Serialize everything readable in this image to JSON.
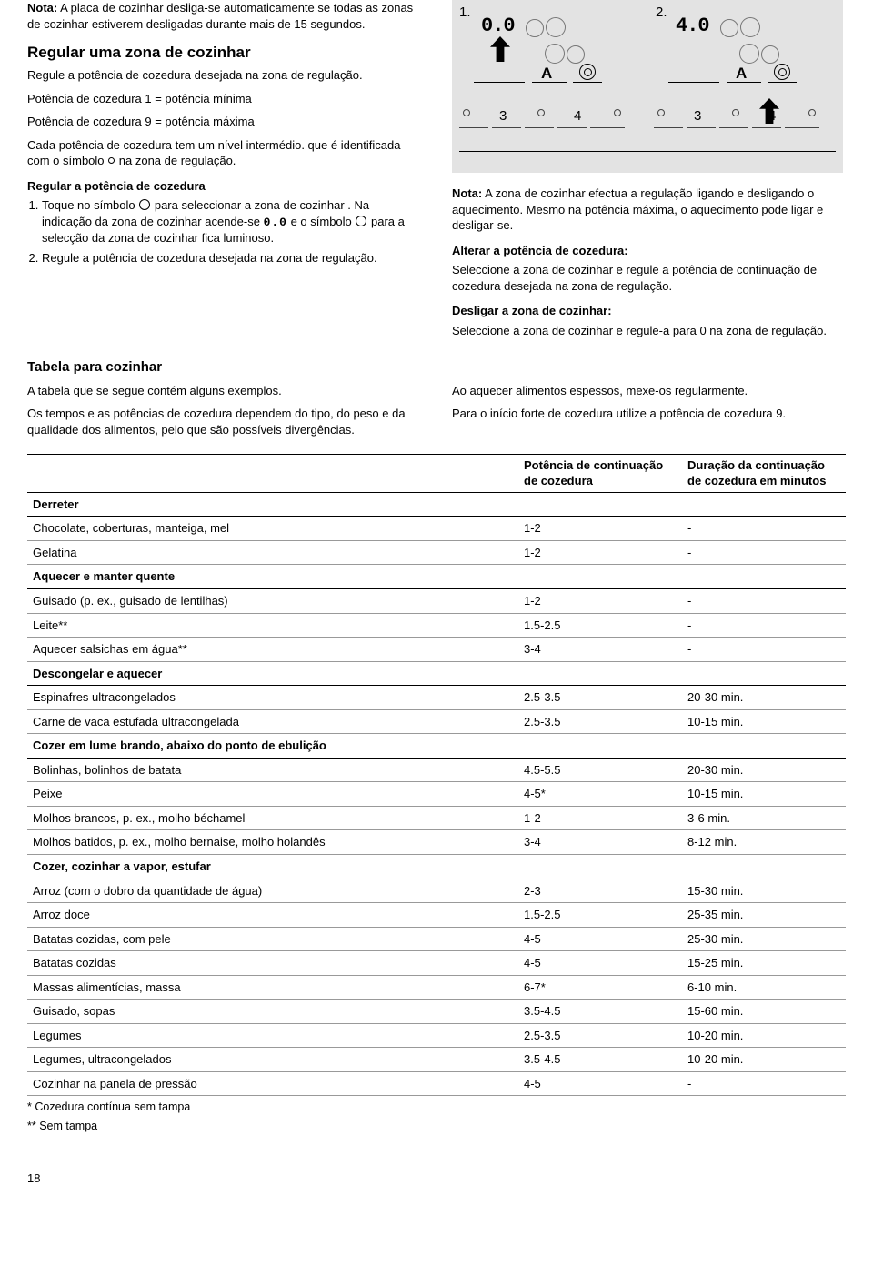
{
  "intro": {
    "note_label": "Nota:",
    "note_text": " A placa de cozinhar desliga-se automaticamente se todas as zonas de cozinhar estiverem desligadas durante mais de 15 segundos.",
    "h_regular": "Regular uma zona de cozinhar",
    "p_regule": "Regule a potência de cozedura desejada na zona de regulação.",
    "p_min": "Potência de cozedura 1 = potência mínima",
    "p_max": "Potência de cozedura 9 = potência máxima",
    "p_inter1": "Cada potência de cozedura tem um nível intermédio. que é identificada com o símbolo ",
    "p_inter2": " na zona de regulação.",
    "sub_pot": "Regular a potência de cozedura",
    "li1a": "Toque no símbolo ",
    "li1b": " para seleccionar a zona de cozinhar . Na indicação da zona de cozinhar acende-se ",
    "li1c": " e o símbolo ",
    "li1d": " para a selecção da zona de cozinhar fica luminoso.",
    "seg00": "0.0",
    "li2": "Regule a potência de cozedura desejada na zona de regulação."
  },
  "illus": {
    "n1": "1.",
    "n2": "2.",
    "disp1": "0.0",
    "disp2": "4.0",
    "a": "A",
    "s3": "3",
    "s4": "4"
  },
  "right": {
    "note_label": "Nota:",
    "note_text": " A zona de cozinhar efectua a regulação ligando e desligando o aquecimento. Mesmo na potência máxima, o aquecimento pode ligar e desligar-se.",
    "h_alt": "Alterar a potência de cozedura:",
    "p_alt": "Seleccione a zona de cozinhar e regule a potência de continuação de cozedura desejada na zona de regulação.",
    "h_off": "Desligar a zona de cozinhar:",
    "p_off": "Seleccione a zona de cozinhar e regule-a para 0 na zona de regulação."
  },
  "tabela": {
    "h": "Tabela para cozinhar",
    "l1": "A tabela que se segue contém alguns exemplos.",
    "l2": "Os tempos e as potências de cozedura dependem do tipo, do peso e da qualidade dos alimentos, pelo que são possíveis divergências.",
    "r1": "Ao aquecer alimentos espessos, mexe-os regularmente.",
    "r2": "Para o início forte de cozedura utilize a potência de cozedura 9.",
    "th1": "Potência de continuação de cozedura",
    "th2": "Duração da continuação de cozedura em minutos",
    "foot1": "* Cozedura contínua sem tampa",
    "foot2": "** Sem tampa"
  },
  "rows": [
    {
      "s": 1,
      "t": "Derreter"
    },
    {
      "t": "Chocolate, coberturas, manteiga, mel",
      "p": "1-2",
      "d": "-"
    },
    {
      "t": "Gelatina",
      "p": "1-2",
      "d": "-"
    },
    {
      "s": 1,
      "t": "Aquecer e manter quente"
    },
    {
      "t": "Guisado (p. ex., guisado de lentilhas)",
      "p": "1-2",
      "d": "-"
    },
    {
      "t": "Leite**",
      "p": "1.5-2.5",
      "d": "-"
    },
    {
      "t": "Aquecer salsichas em água**",
      "p": "3-4",
      "d": "-"
    },
    {
      "s": 1,
      "t": "Descongelar e aquecer"
    },
    {
      "t": "Espinafres ultracongelados",
      "p": "2.5-3.5",
      "d": "20-30 min."
    },
    {
      "t": "Carne de vaca estufada ultracongelada",
      "p": "2.5-3.5",
      "d": "10-15 min."
    },
    {
      "s": 1,
      "t": "Cozer em lume brando, abaixo do ponto de ebulição"
    },
    {
      "t": "Bolinhas, bolinhos de batata",
      "p": "4.5-5.5",
      "d": "20-30 min."
    },
    {
      "t": "Peixe",
      "p": "4-5*",
      "d": "10-15 min."
    },
    {
      "t": "Molhos brancos, p. ex., molho béchamel",
      "p": "1-2",
      "d": "3-6 min."
    },
    {
      "t": "Molhos batidos, p. ex., molho bernaise, molho holandês",
      "p": "3-4",
      "d": "8-12 min."
    },
    {
      "s": 1,
      "t": "Cozer, cozinhar a vapor, estufar"
    },
    {
      "t": "Arroz (com o dobro da quantidade de água)",
      "p": "2-3",
      "d": "15-30 min."
    },
    {
      "t": "Arroz doce",
      "p": "1.5-2.5",
      "d": "25-35 min."
    },
    {
      "t": "Batatas cozidas, com pele",
      "p": "4-5",
      "d": "25-30 min."
    },
    {
      "t": "Batatas cozidas",
      "p": "4-5",
      "d": "15-25 min."
    },
    {
      "t": "Massas alimentícias, massa",
      "p": "6-7*",
      "d": "6-10 min."
    },
    {
      "t": "Guisado, sopas",
      "p": "3.5-4.5",
      "d": "15-60 min."
    },
    {
      "t": "Legumes",
      "p": "2.5-3.5",
      "d": "10-20 min."
    },
    {
      "t": "Legumes, ultracongelados",
      "p": "3.5-4.5",
      "d": "10-20 min."
    },
    {
      "t": "Cozinhar na panela de pressão",
      "p": "4-5",
      "d": "-"
    }
  ],
  "page": "18"
}
